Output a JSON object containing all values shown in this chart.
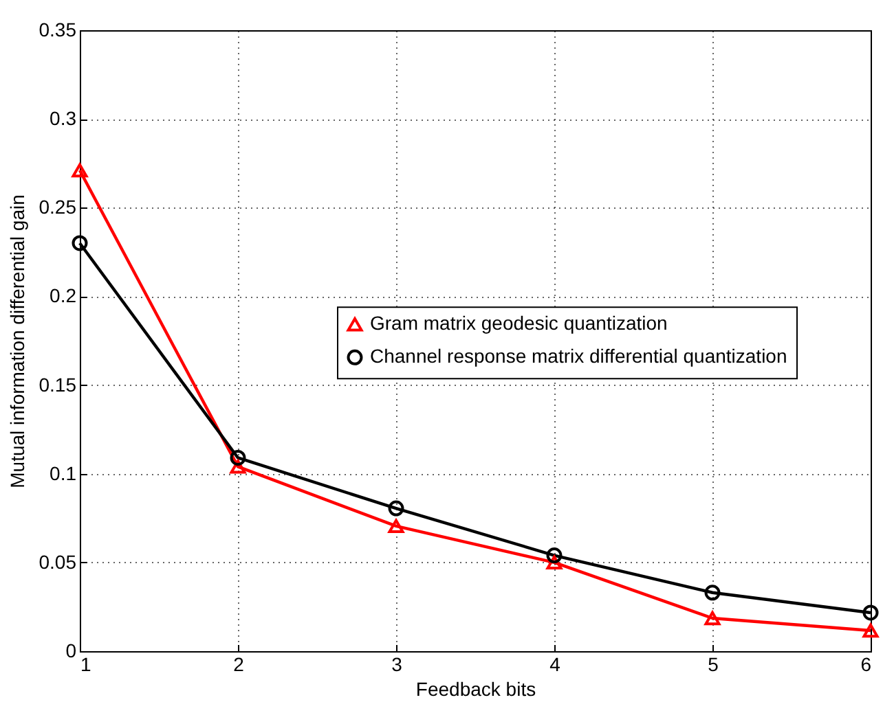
{
  "chart_data": {
    "type": "line",
    "xlabel": "Feedback bits",
    "ylabel": "Mutual information differential gain",
    "x": [
      1,
      2,
      3,
      4,
      5,
      6
    ],
    "series": [
      {
        "name": "Gram matrix geodesic quantization",
        "color": "#ff0000",
        "marker": "triangle",
        "values": [
          0.271,
          0.104,
          0.0705,
          0.05,
          0.0186,
          0.0116
        ]
      },
      {
        "name": "Channel response matrix differential quantization",
        "color": "#000000",
        "marker": "circle",
        "values": [
          0.23,
          0.109,
          0.0805,
          0.054,
          0.033,
          0.0217
        ]
      }
    ],
    "xlim": [
      1,
      6
    ],
    "xticks": [
      1,
      2,
      3,
      4,
      5,
      6
    ],
    "ylim": [
      0,
      0.35
    ],
    "yticks": [
      0,
      0.05,
      0.1,
      0.15,
      0.2,
      0.25,
      0.3,
      0.35
    ],
    "grid": true,
    "legend": "right",
    "line_style": "solid"
  }
}
